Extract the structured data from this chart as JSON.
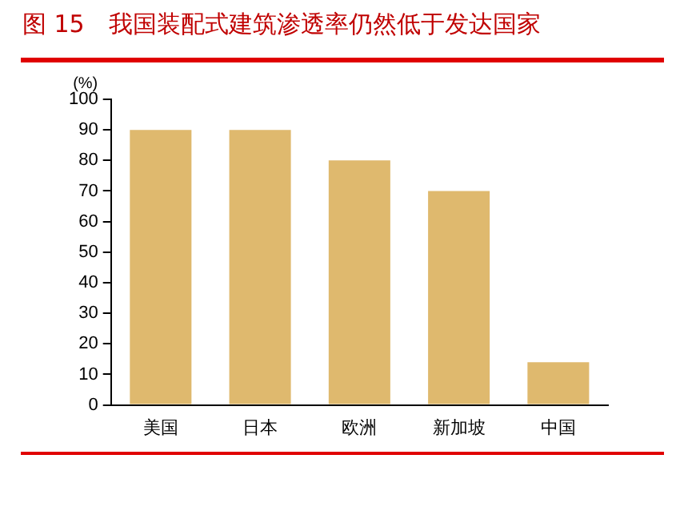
{
  "chart_data": {
    "type": "bar",
    "title": "图 15　我国装配式建筑渗透率仍然低于发达国家",
    "ylabel": "(%)",
    "categories": [
      "美国",
      "日本",
      "欧洲",
      "新加坡",
      "中国"
    ],
    "values": [
      90,
      90,
      80,
      70,
      14
    ],
    "color": "#dfb96e",
    "ylim": [
      0,
      100
    ],
    "yticks": [
      0,
      10,
      20,
      30,
      40,
      50,
      60,
      70,
      80,
      90,
      100
    ],
    "grid": false,
    "legend": false
  }
}
